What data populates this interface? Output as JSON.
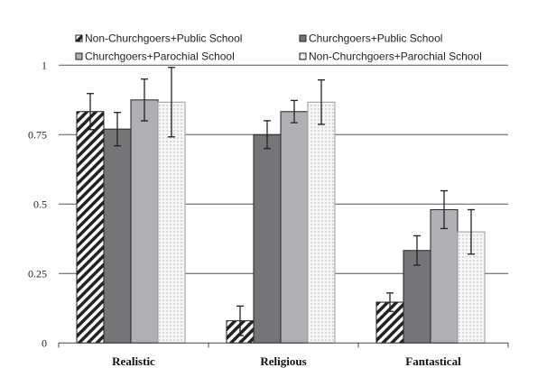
{
  "chart_data": {
    "type": "bar",
    "title": "",
    "xlabel": "",
    "ylabel": "",
    "ylim": [
      0,
      1
    ],
    "yticks": [
      "0",
      "0.25",
      "0.5",
      "0.75",
      "1"
    ],
    "grid": true,
    "legend_placement": "top",
    "categories": [
      "Realistic",
      "Religious",
      "Fantastical"
    ],
    "series": [
      {
        "name": "Non-Churchgoers+Public School",
        "pattern": "diagonal-hatch",
        "color": "#222222",
        "values": [
          0.833,
          0.08,
          0.147
        ],
        "errors": [
          0.065,
          0.053,
          0.033
        ]
      },
      {
        "name": "Churchgoers+Public School",
        "pattern": "solid",
        "color": "#757578",
        "values": [
          0.77,
          0.75,
          0.333
        ],
        "errors": [
          0.06,
          0.05,
          0.053
        ]
      },
      {
        "name": "Churchgoers+Parochial School",
        "pattern": "solid",
        "color": "#b0b0b4",
        "values": [
          0.875,
          0.833,
          0.48
        ],
        "errors": [
          0.075,
          0.04,
          0.068
        ]
      },
      {
        "name": "Non-Churchgoers+Parochial School",
        "pattern": "dotted",
        "color": "#f4f4f4",
        "values": [
          0.867,
          0.867,
          0.4
        ],
        "errors": [
          0.125,
          0.08,
          0.08
        ]
      }
    ]
  }
}
